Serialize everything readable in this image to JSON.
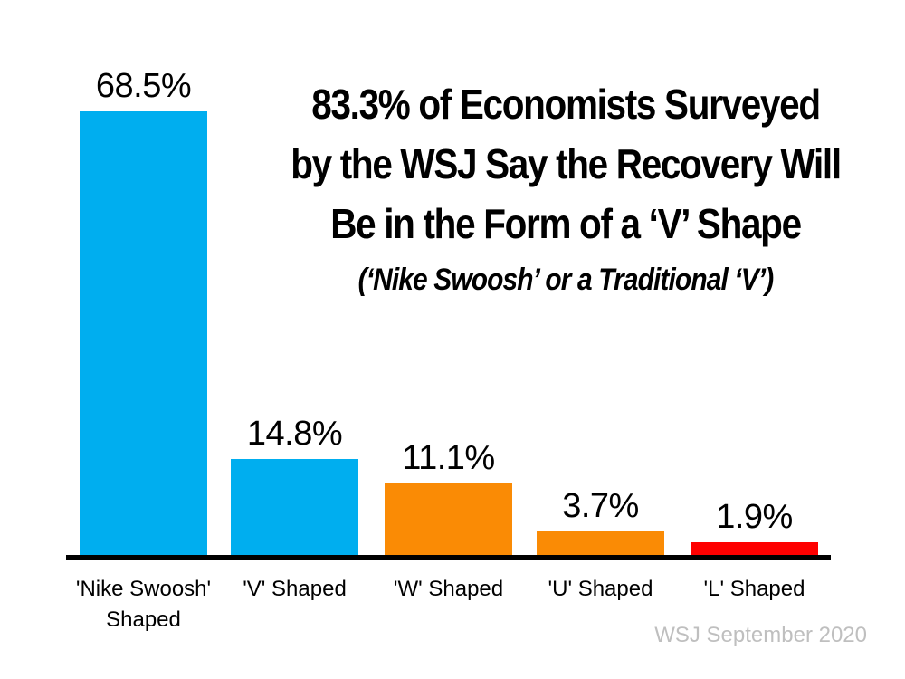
{
  "chart_data": {
    "type": "bar",
    "title": "83.3% of Economists Surveyed by the WSJ Say the Recovery Will Be in the Form of a ‘V’ Shape",
    "title_lines": [
      "83.3% of Economists Surveyed",
      "by the WSJ Say the Recovery Will",
      "Be in the Form of a ‘V’ Shape"
    ],
    "subtitle": "(‘Nike Swoosh’ or a Traditional ‘V’)",
    "categories": [
      "'Nike Swoosh' Shaped",
      "'V' Shaped",
      "'W' Shaped",
      "'U' Shaped",
      "'L' Shaped"
    ],
    "values": [
      68.5,
      14.8,
      11.1,
      3.7,
      1.9
    ],
    "value_labels": [
      "68.5%",
      "14.8%",
      "11.1%",
      "3.7%",
      "1.9%"
    ],
    "bar_colors": [
      "#00AEEF",
      "#00AEEF",
      "#FA8B05",
      "#FA8B05",
      "#FE0000"
    ],
    "source": "WSJ September 2020",
    "xlabel": "",
    "ylabel": "",
    "ylim": [
      0,
      70
    ],
    "grid": false,
    "legend": false,
    "colors": {
      "blue": "#00AEEF",
      "orange": "#FA8B05",
      "red": "#FE0000",
      "axis": "#000000",
      "text": "#000000",
      "source_text": "#BFBFBF",
      "background": "#FFFFFF"
    }
  }
}
